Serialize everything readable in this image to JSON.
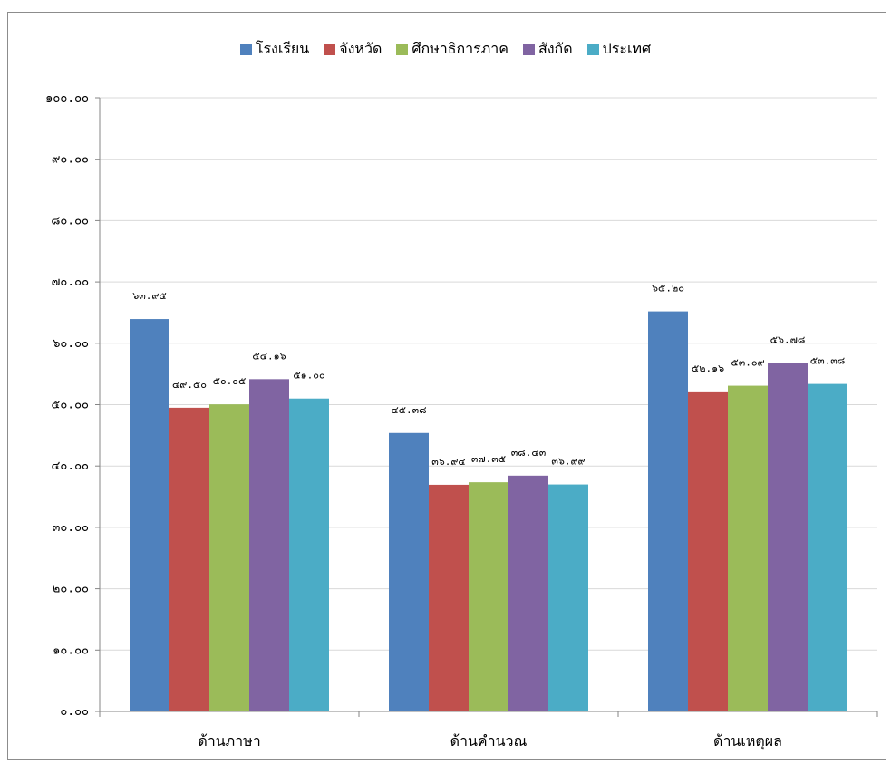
{
  "chart_data": {
    "type": "bar",
    "categories": [
      "ด้านภาษา",
      "ด้านคำนวณ",
      "ด้านเหตุผล"
    ],
    "series": [
      {
        "name": "โรงเรียน",
        "color": "#4f81bd",
        "values": [
          63.95,
          45.38,
          65.2
        ],
        "labels": [
          "๖๓.๙๕",
          "๔๕.๓๘",
          "๖๕.๒๐"
        ]
      },
      {
        "name": "จังหวัด",
        "color": "#c0504d",
        "values": [
          49.5,
          36.94,
          52.16
        ],
        "labels": [
          "๔๙.๕๐",
          "๓๖.๙๔",
          "๕๒.๑๖"
        ]
      },
      {
        "name": "ศึกษาธิการภาค",
        "color": "#9bbb59",
        "values": [
          50.05,
          37.35,
          53.09
        ],
        "labels": [
          "๕๐.๐๕",
          "๓๗.๓๕",
          "๕๓.๐๙"
        ]
      },
      {
        "name": "สังกัด",
        "color": "#8064a2",
        "values": [
          54.16,
          38.43,
          56.78
        ],
        "labels": [
          "๕๔.๑๖",
          "๓๘.๔๓",
          "๕๖.๗๘"
        ]
      },
      {
        "name": "ประเทศ",
        "color": "#4bacc6",
        "values": [
          51.0,
          36.99,
          53.38
        ],
        "labels": [
          "๕๑.๐๐",
          "๓๖.๙๙",
          "๕๓.๓๘"
        ]
      }
    ],
    "ylim": [
      0,
      100
    ],
    "ytick_values": [
      0,
      10,
      20,
      30,
      40,
      50,
      60,
      70,
      80,
      90,
      100
    ],
    "ytick_labels": [
      "๐.๐๐",
      "๑๐.๐๐",
      "๒๐.๐๐",
      "๓๐.๐๐",
      "๔๐.๐๐",
      "๕๐.๐๐",
      "๖๐.๐๐",
      "๗๐.๐๐",
      "๘๐.๐๐",
      "๙๐.๐๐",
      "๑๐๐.๐๐"
    ],
    "grid": true,
    "legend_position": "top",
    "title": "",
    "xlabel": "",
    "ylabel": ""
  }
}
